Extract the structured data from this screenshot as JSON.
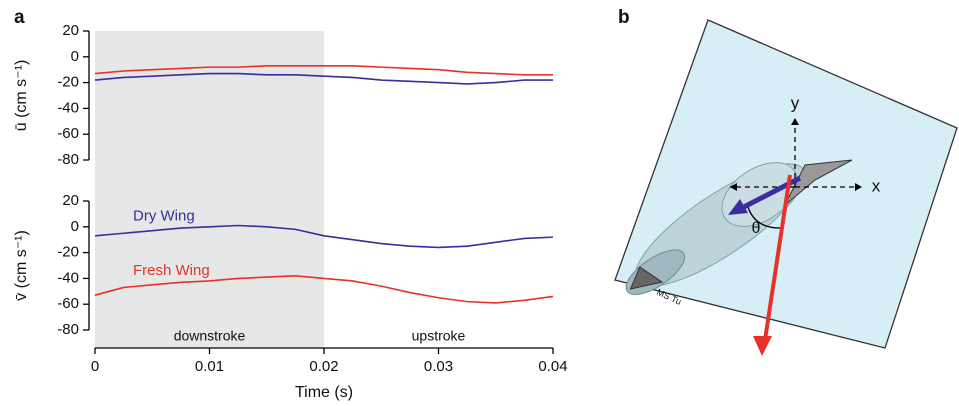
{
  "panel_labels": [
    "a",
    "b"
  ],
  "chart_data": [
    {
      "type": "line",
      "ylabel": "ū (cm s⁻¹)",
      "xlim": [
        0,
        0.04
      ],
      "ylim": [
        -80,
        20
      ],
      "yticks": [
        20,
        0,
        -20,
        -40,
        -60,
        -80
      ],
      "span": [
        0,
        0.02
      ],
      "span_color": "#e6e7e7",
      "x": [
        0,
        0.0025,
        0.005,
        0.0075,
        0.01,
        0.0125,
        0.015,
        0.0175,
        0.02,
        0.0225,
        0.025,
        0.0275,
        0.03,
        0.0325,
        0.035,
        0.0375,
        0.04
      ],
      "series": [
        {
          "name": "Fresh Wing",
          "color": "#e8312a",
          "values": [
            -13,
            -11,
            -10,
            -9,
            -8,
            -8,
            -7,
            -7,
            -7,
            -7,
            -8,
            -9,
            -10,
            -12,
            -13,
            -14,
            -14
          ]
        },
        {
          "name": "Dry Wing",
          "color": "#3b2d9c",
          "values": [
            -18,
            -16,
            -15,
            -14,
            -13,
            -13,
            -14,
            -14,
            -15,
            -16,
            -18,
            -19,
            -20,
            -21,
            -20,
            -18,
            -18
          ]
        }
      ]
    },
    {
      "type": "line",
      "ylabel": "v̄ (cm s⁻¹)",
      "xlabel": "Time (s)",
      "xlim": [
        0,
        0.04
      ],
      "ylim": [
        -80,
        20
      ],
      "yticks": [
        20,
        0,
        -20,
        -40,
        -60,
        -80
      ],
      "xticks": [
        0,
        0.01,
        0.02,
        0.03,
        0.04
      ],
      "annotations": [
        "downstroke",
        "upstroke"
      ],
      "x": [
        0,
        0.0025,
        0.005,
        0.0075,
        0.01,
        0.0125,
        0.015,
        0.0175,
        0.02,
        0.0225,
        0.025,
        0.0275,
        0.03,
        0.0325,
        0.035,
        0.0375,
        0.04
      ],
      "series": [
        {
          "name": "Dry Wing",
          "color": "#3b2d9c",
          "values": [
            -7,
            -5,
            -3,
            -1,
            0,
            1,
            0,
            -2,
            -7,
            -10,
            -13,
            -15,
            -16,
            -15,
            -12,
            -9,
            -8
          ]
        },
        {
          "name": "Fresh Wing",
          "color": "#e8312a",
          "values": [
            -53,
            -47,
            -45,
            -43,
            -42,
            -40,
            -39,
            -38,
            -40,
            -42,
            -46,
            -51,
            -55,
            -58,
            -59,
            -57,
            -54
          ]
        }
      ]
    }
  ],
  "diagram": {
    "y_label": "y",
    "x_label": "x",
    "angle_label": "θ",
    "part_label": "MS Tu"
  }
}
